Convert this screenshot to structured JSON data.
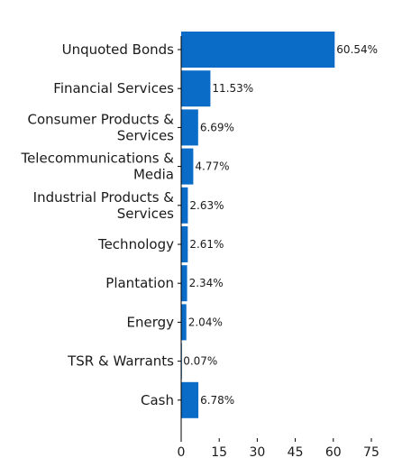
{
  "chart_data": {
    "type": "bar",
    "orientation": "horizontal",
    "categories": [
      [
        "Unquoted Bonds"
      ],
      [
        "Financial Services"
      ],
      [
        "Consumer Products &",
        "Services"
      ],
      [
        "Telecommunications &",
        "Media"
      ],
      [
        "Industrial Products &",
        "Services"
      ],
      [
        "Technology"
      ],
      [
        "Plantation"
      ],
      [
        "Energy"
      ],
      [
        "TSR & Warrants"
      ],
      [
        "Cash"
      ]
    ],
    "values": [
      60.54,
      11.53,
      6.69,
      4.77,
      2.63,
      2.61,
      2.34,
      2.04,
      0.07,
      6.78
    ],
    "value_labels": [
      "60.54%",
      "11.53%",
      "6.69%",
      "4.77%",
      "2.63%",
      "2.61%",
      "2.34%",
      "2.04%",
      "0.07%",
      "6.78%"
    ],
    "x_ticks": [
      0,
      15,
      30,
      45,
      60,
      75
    ],
    "x_tick_labels": [
      "0",
      "15",
      "30",
      "45",
      "60",
      "75"
    ],
    "xlim": [
      0,
      82
    ],
    "title": "",
    "xlabel": "",
    "ylabel": "",
    "grid": false,
    "legend": "none",
    "bar_color": "#0b6cc7"
  }
}
